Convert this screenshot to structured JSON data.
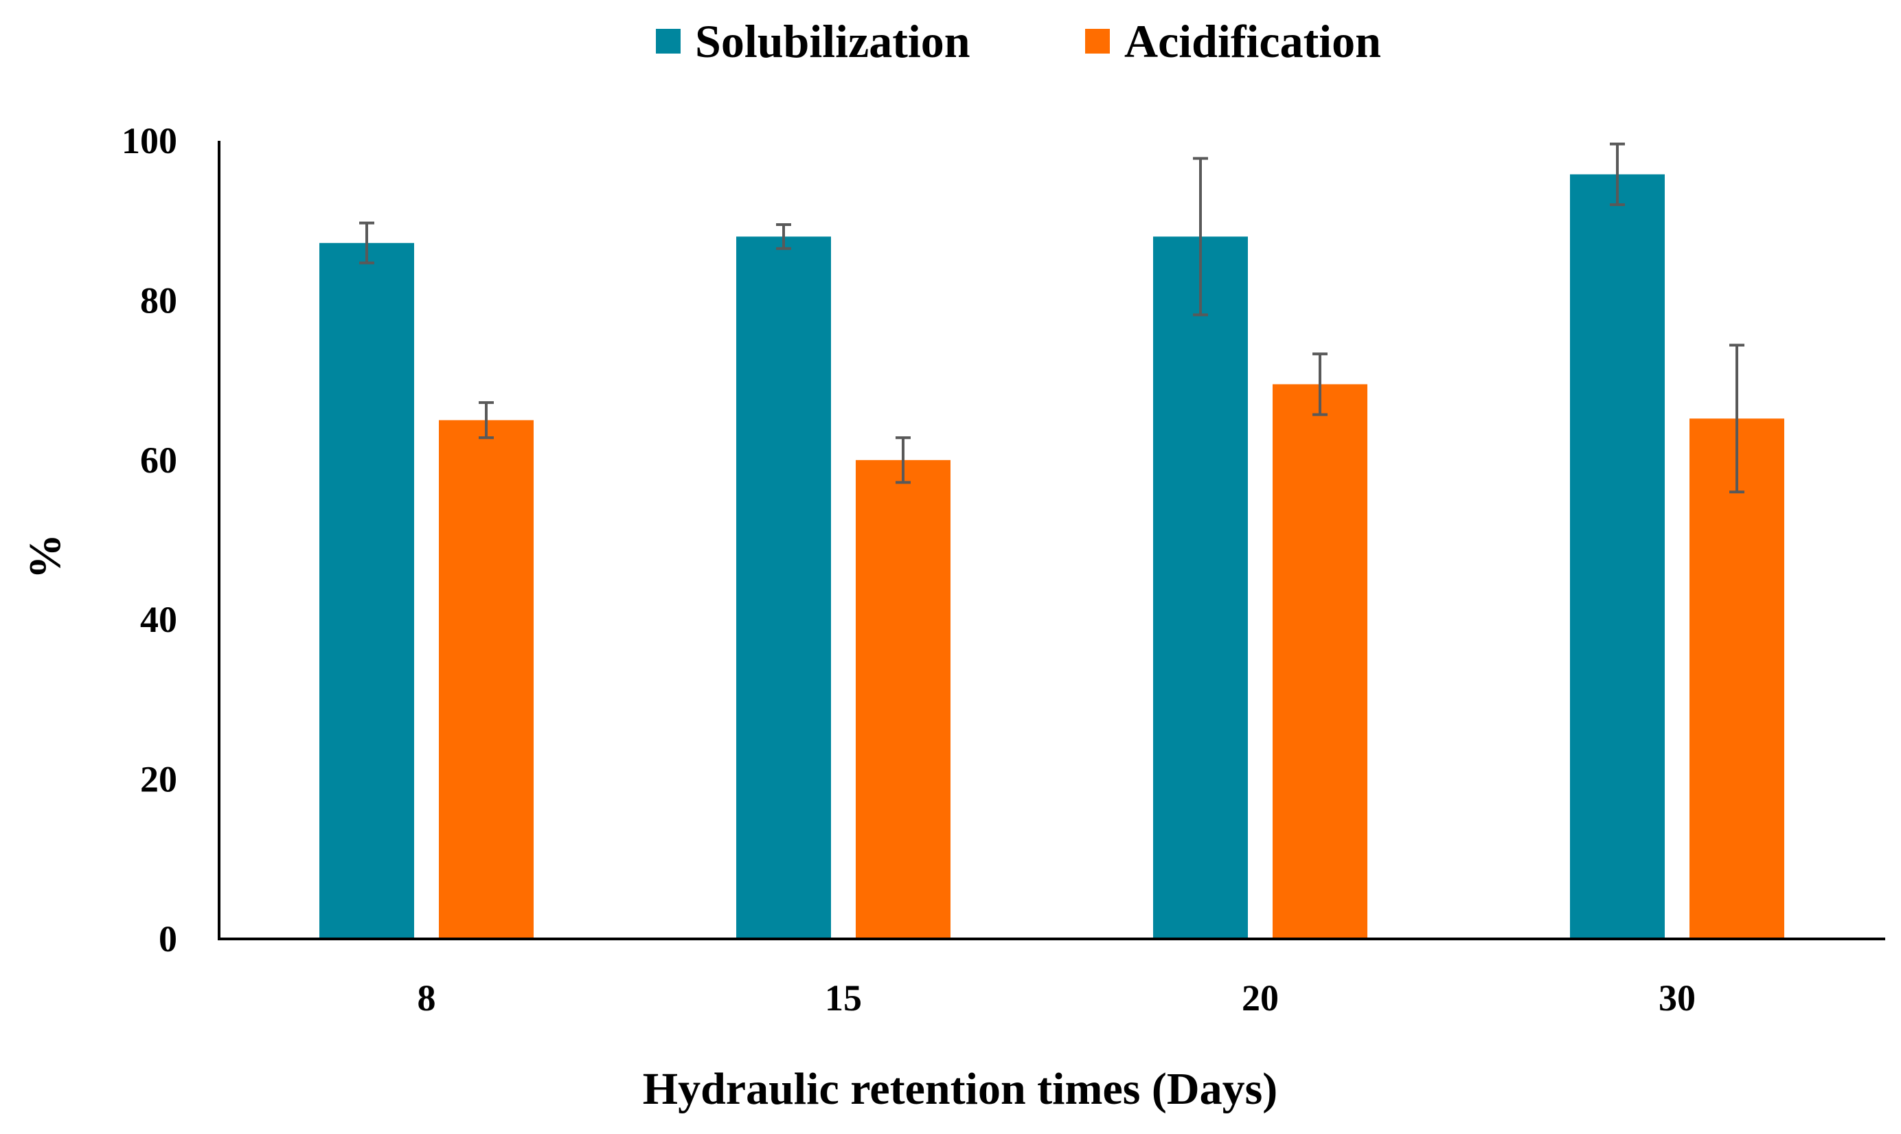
{
  "chart_data": {
    "type": "bar",
    "title": "",
    "xlabel": "Hydraulic retention times (Days)",
    "ylabel": "%",
    "ylim": [
      0,
      100
    ],
    "yticks": [
      0,
      20,
      40,
      60,
      80,
      100
    ],
    "yticks_labels": [
      "0",
      "20",
      "40",
      "60",
      "80",
      "100"
    ],
    "grid": false,
    "legend_position": "top-center",
    "categories": [
      "8",
      "15",
      "20",
      "30"
    ],
    "series": [
      {
        "name": "Solubilization",
        "color": "#00869E",
        "values": [
          87.2,
          88,
          88,
          95.8
        ],
        "errors": [
          2.5,
          1.5,
          9.8,
          3.8
        ]
      },
      {
        "name": "Acidification",
        "color": "#FF6D00",
        "values": [
          65,
          60,
          69.5,
          65.2
        ],
        "errors": [
          2.2,
          2.8,
          3.8,
          9.2
        ]
      }
    ],
    "error_bar_color": "#595959",
    "axis_color": "#000000"
  }
}
